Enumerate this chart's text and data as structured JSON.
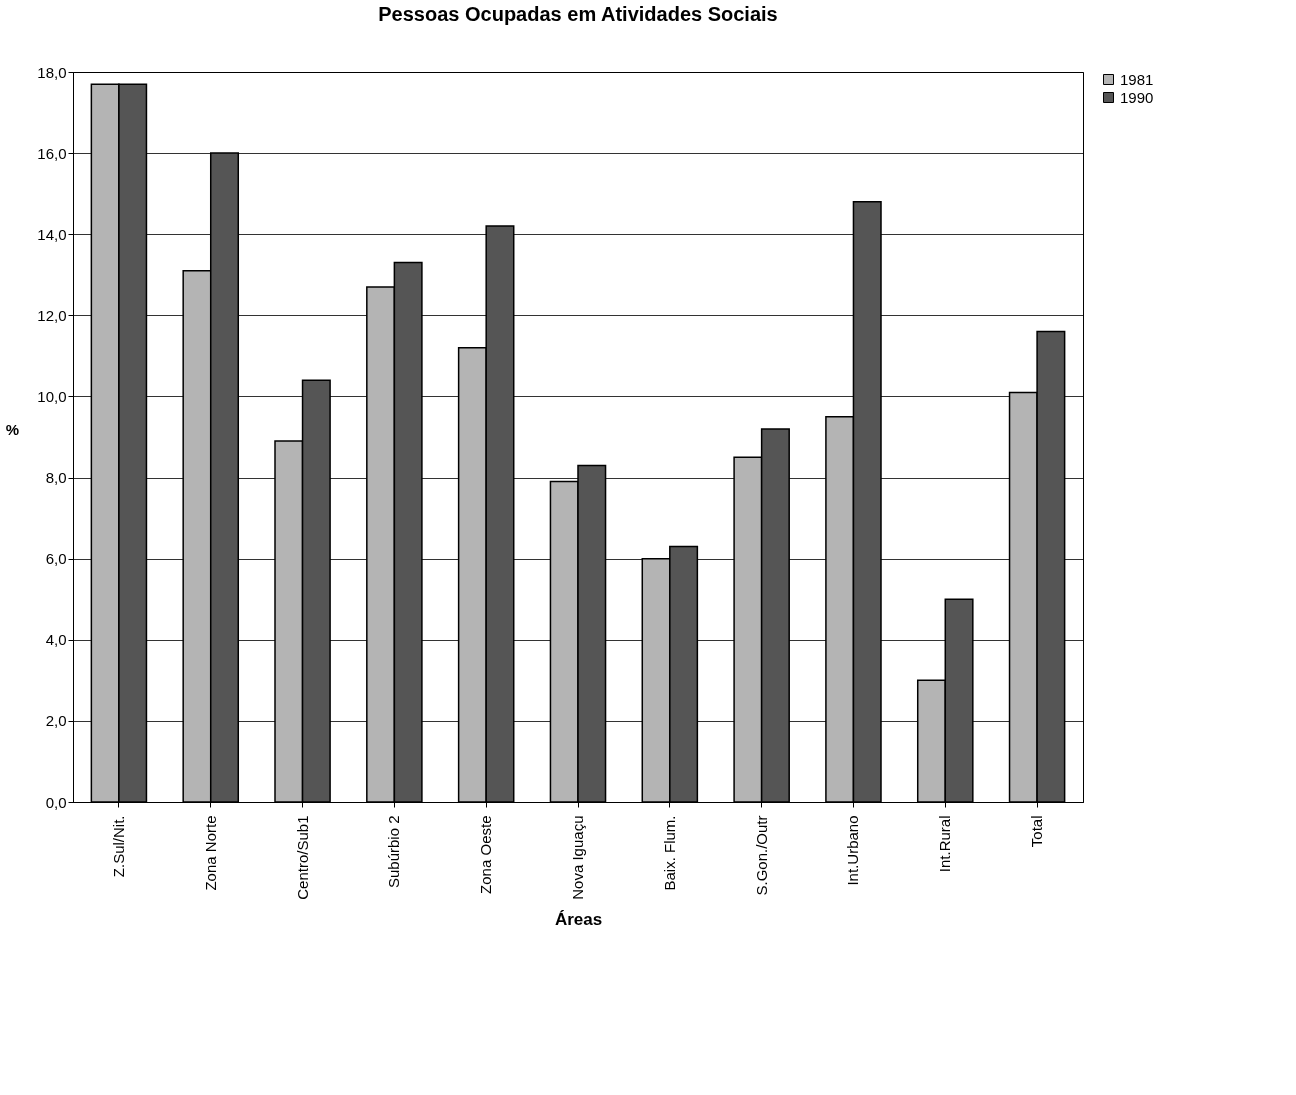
{
  "chart_data": {
    "type": "bar",
    "title": "Pessoas Ocupadas em Atividades Sociais",
    "xlabel": "Áreas",
    "ylabel": "%",
    "categories": [
      "Z.Sul/Nit.",
      "Zona Norte",
      "Centro/Sub1",
      "Subúrbio 2",
      "Zona Oeste",
      "Nova Iguaçu",
      "Baix. Flum.",
      "S.Gon./Outr",
      "Int.Urbano",
      "Int.Rural",
      "Total"
    ],
    "series": [
      {
        "name": "1981",
        "color": "#b4b4b4",
        "values": [
          17.7,
          13.1,
          8.9,
          12.7,
          11.2,
          7.9,
          6.0,
          8.5,
          9.5,
          3.0,
          10.1
        ]
      },
      {
        "name": "1990",
        "color": "#555555",
        "values": [
          17.7,
          16.0,
          10.4,
          13.3,
          14.2,
          8.3,
          6.3,
          9.2,
          14.8,
          5.0,
          11.6
        ]
      }
    ],
    "ylim": [
      0,
      18
    ],
    "yticks": [
      {
        "value": 0,
        "label": "0,0"
      },
      {
        "value": 2,
        "label": "2,0"
      },
      {
        "value": 4,
        "label": "4,0"
      },
      {
        "value": 6,
        "label": "6,0"
      },
      {
        "value": 8,
        "label": "8,0"
      },
      {
        "value": 10,
        "label": "10,0"
      },
      {
        "value": 12,
        "label": "12,0"
      },
      {
        "value": 14,
        "label": "14,0"
      },
      {
        "value": 16,
        "label": "16,0"
      },
      {
        "value": 18,
        "label": "18,0"
      }
    ],
    "grid": "y",
    "legend": "right"
  }
}
